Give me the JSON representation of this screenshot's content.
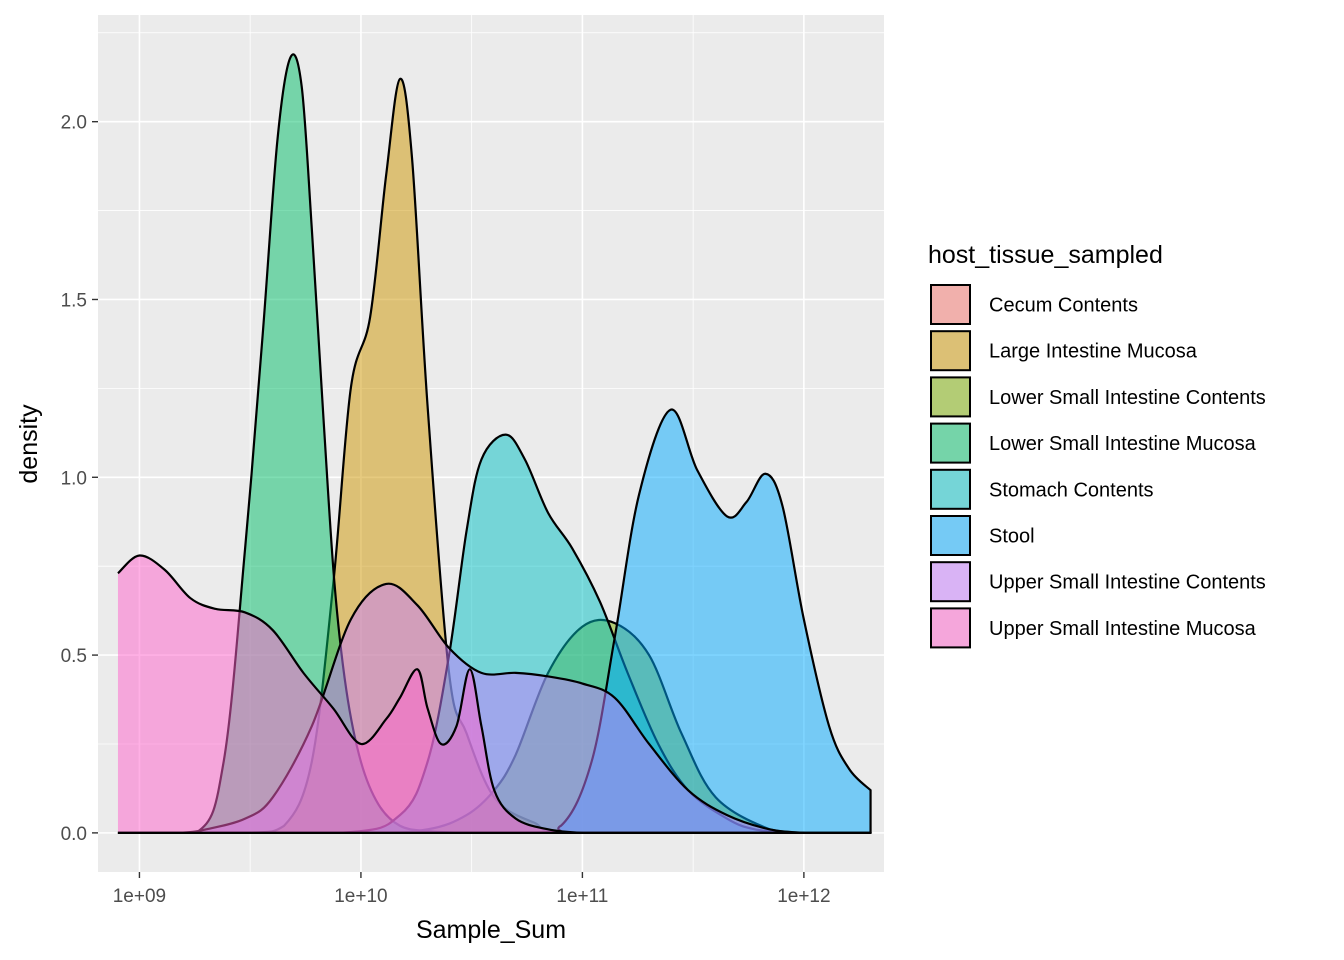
{
  "chart_data": {
    "type": "area",
    "subtype": "density",
    "title": "",
    "xlabel": "Sample_Sum",
    "ylabel": "density",
    "x_scale": "log10",
    "xlim": [
      650000000,
      2300000000000
    ],
    "ylim": [
      -0.11,
      2.3
    ],
    "x_ticks": [
      {
        "value": 1000000000,
        "label": "1e+09"
      },
      {
        "value": 10000000000,
        "label": "1e+10"
      },
      {
        "value": 100000000000,
        "label": "1e+11"
      },
      {
        "value": 1000000000000,
        "label": "1e+12"
      }
    ],
    "y_ticks": [
      {
        "value": 0.0,
        "label": "0.0"
      },
      {
        "value": 0.5,
        "label": "0.5"
      },
      {
        "value": 1.0,
        "label": "1.0"
      },
      {
        "value": 1.5,
        "label": "1.5"
      },
      {
        "value": 2.0,
        "label": "2.0"
      }
    ],
    "grid": true,
    "legend": {
      "title": "host_tissue_sampled",
      "position": "right"
    },
    "series": [
      {
        "name": "Cecum Contents",
        "color": "#F8766D",
        "x": [
          800000000.0,
          2000000000.0,
          4000000000.0,
          6000000000.0,
          9000000000.0,
          13000000000.0,
          18000000000.0,
          25000000000.0,
          35000000000.0,
          50000000000.0,
          70000000000.0,
          100000000000.0,
          150000000000.0,
          250000000000.0,
          500000000000.0,
          1000000000000.0,
          2000000000000.0
        ],
        "y": [
          0.0,
          0.0,
          0.0,
          0.0,
          0.0,
          0.0,
          0.0,
          0.0,
          0.0,
          0.0,
          0.0,
          0.0,
          0.0,
          0.0,
          0.0,
          0.0,
          0.0
        ]
      },
      {
        "name": "Large Intestine Mucosa",
        "color": "#CD9600",
        "x": [
          800000000.0,
          3000000000.0,
          4500000000.0,
          6000000000.0,
          7500000000.0,
          9000000000.0,
          11000000000.0,
          13000000000.0,
          15000000000.0,
          17000000000.0,
          20000000000.0,
          25000000000.0,
          30000000000.0,
          40000000000.0,
          60000000000.0,
          100000000000.0,
          2000000000000.0
        ],
        "y": [
          0.0,
          0.0,
          0.02,
          0.2,
          0.7,
          1.25,
          1.45,
          1.85,
          2.12,
          1.9,
          1.2,
          0.45,
          0.28,
          0.1,
          0.03,
          0.0,
          0.0
        ]
      },
      {
        "name": "Lower Small Intestine Contents",
        "color": "#7CAE00",
        "x": [
          800000000.0,
          10000000000.0,
          20000000000.0,
          30000000000.0,
          40000000000.0,
          50000000000.0,
          70000000000.0,
          100000000000.0,
          140000000000.0,
          200000000000.0,
          280000000000.0,
          400000000000.0,
          700000000000.0,
          1000000000000.0
        ],
        "y": [
          0.0,
          0.0,
          0.01,
          0.05,
          0.12,
          0.22,
          0.45,
          0.58,
          0.59,
          0.5,
          0.28,
          0.1,
          0.01,
          0.0
        ]
      },
      {
        "name": "Lower Small Intestine Mucosa",
        "color": "#00BE67",
        "x": [
          800000000.0,
          1800000000.0,
          2400000000.0,
          3000000000.0,
          3600000000.0,
          4200000000.0,
          4800000000.0,
          5400000000.0,
          6000000000.0,
          6800000000.0,
          7600000000.0,
          8600000000.0,
          10000000000.0,
          12000000000.0,
          15000000000.0,
          20000000000.0,
          30000000000.0,
          50000000000.0,
          80000000000.0,
          2000000000000.0
        ],
        "y": [
          0.0,
          0.0,
          0.2,
          0.8,
          1.4,
          1.95,
          2.18,
          2.1,
          1.7,
          1.15,
          0.7,
          0.4,
          0.2,
          0.08,
          0.02,
          0.005,
          0.0,
          0.0,
          0.0,
          0.0
        ]
      },
      {
        "name": "Stomach Contents",
        "color": "#00BFC4",
        "x": [
          800000000.0,
          8000000000.0,
          15000000000.0,
          20000000000.0,
          25000000000.0,
          30000000000.0,
          35000000000.0,
          45000000000.0,
          55000000000.0,
          70000000000.0,
          90000000000.0,
          120000000000.0,
          160000000000.0,
          220000000000.0,
          300000000000.0,
          450000000000.0,
          600000000000.0,
          900000000000.0
        ],
        "y": [
          0.0,
          0.0,
          0.05,
          0.2,
          0.5,
          0.85,
          1.05,
          1.12,
          1.05,
          0.9,
          0.8,
          0.65,
          0.45,
          0.25,
          0.12,
          0.04,
          0.01,
          0.0
        ]
      },
      {
        "name": "Stool",
        "color": "#00A9FF",
        "x": [
          800000000.0,
          50000000000.0,
          80000000000.0,
          110000000000.0,
          140000000000.0,
          180000000000.0,
          250000000000.0,
          330000000000.0,
          450000000000.0,
          550000000000.0,
          670000000000.0,
          800000000000.0,
          1000000000000.0,
          1300000000000.0,
          1600000000000.0,
          2000000000000.0
        ],
        "y": [
          0.0,
          0.0,
          0.02,
          0.2,
          0.55,
          0.95,
          1.19,
          1.02,
          0.89,
          0.93,
          1.01,
          0.92,
          0.6,
          0.3,
          0.18,
          0.12
        ]
      },
      {
        "name": "Upper Small Intestine Contents",
        "color": "#C77CFF",
        "x": [
          800000000.0,
          1500000000.0,
          2000000000.0,
          3000000000.0,
          4000000000.0,
          6000000000.0,
          9000000000.0,
          13000000000.0,
          18000000000.0,
          25000000000.0,
          35000000000.0,
          50000000000.0,
          70000000000.0,
          100000000000.0,
          140000000000.0,
          200000000000.0,
          300000000000.0,
          450000000000.0,
          700000000000.0,
          1000000000000.0
        ],
        "y": [
          0.0,
          0.0,
          0.01,
          0.04,
          0.1,
          0.3,
          0.6,
          0.7,
          0.64,
          0.52,
          0.45,
          0.45,
          0.44,
          0.42,
          0.38,
          0.25,
          0.12,
          0.05,
          0.01,
          0.0
        ]
      },
      {
        "name": "Upper Small Intestine Mucosa",
        "color": "#FF61CC",
        "x": [
          800000000.0,
          1000000000.0,
          1300000000.0,
          1700000000.0,
          2200000000.0,
          3000000000.0,
          4000000000.0,
          5500000000.0,
          7500000000.0,
          10000000000.0,
          13000000000.0,
          15000000000.0,
          18000000000.0,
          20000000000.0,
          23000000000.0,
          27000000000.0,
          31000000000.0,
          35000000000.0,
          40000000000.0,
          50000000000.0,
          70000000000.0,
          100000000000.0,
          150000000000.0,
          2000000000000.0
        ],
        "y": [
          0.73,
          0.78,
          0.74,
          0.66,
          0.63,
          0.62,
          0.57,
          0.45,
          0.35,
          0.25,
          0.32,
          0.38,
          0.46,
          0.35,
          0.25,
          0.3,
          0.46,
          0.3,
          0.12,
          0.04,
          0.01,
          0.0,
          0.0,
          0.0
        ]
      }
    ]
  }
}
